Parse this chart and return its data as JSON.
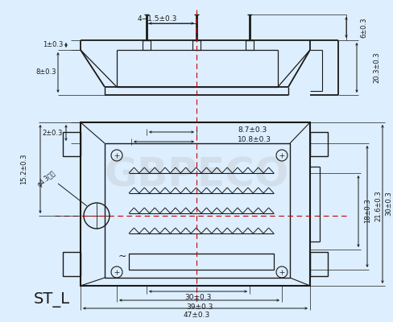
{
  "background_color": "#ddeeff",
  "line_color": "#1a1a1a",
  "dim_color": "#1a1a1a",
  "red_color": "#cc0000",
  "figsize": [
    4.88,
    4.0
  ],
  "dpi": 100,
  "title": "ST_L"
}
